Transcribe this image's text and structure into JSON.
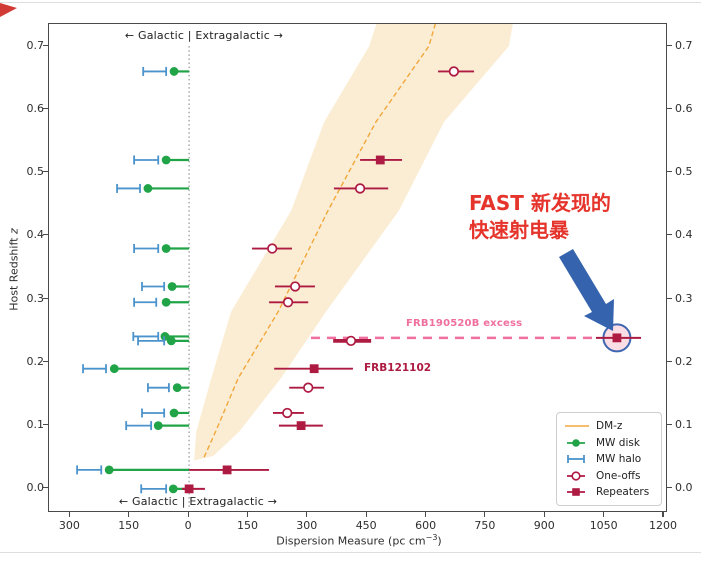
{
  "axes": {
    "ylabel_pre": "Host Redshift ",
    "ylabel_z": "z",
    "xlabel_pre": "Dispersion Measure (pc cm",
    "xlabel_sup": "−3",
    "xlabel_post": ")"
  },
  "annotations": {
    "galactic_top": "← Galactic | Extragalactic →",
    "galactic_bottom": "← Galactic | Extragalactic →",
    "excess_label": "FRB190520B excess",
    "frb121102_label": "FRB121102",
    "fast_line1": "FAST 新发现的",
    "fast_line2": "快速射电暴"
  },
  "legend": {
    "items": [
      {
        "marker": "dmz",
        "label": "DM-z"
      },
      {
        "marker": "disk",
        "label": "MW disk"
      },
      {
        "marker": "halo",
        "label": "MW halo"
      },
      {
        "marker": "oneoff",
        "label": "One-offs"
      },
      {
        "marker": "repeater",
        "label": "Repeaters"
      }
    ]
  },
  "colors": {
    "disk_green": "#21a447",
    "halo_blue": "#4b93cc",
    "frb_crimson": "#ad1a42",
    "excess_pink": "#ef6f9e",
    "dmz_orange": "#f2a73b",
    "band_fill": "#f9e2b8",
    "arrow_blue": "#3563ae",
    "fast_red": "#e5342b",
    "highlight_fill": "#f9d7e0",
    "highlight_stroke": "#3f66b0",
    "zero_line": "#8a8a8a"
  },
  "chart_data": {
    "type": "scatter",
    "title": "",
    "xlabel": "Dispersion Measure (pc cm^-3)",
    "ylabel": "Host Redshift z",
    "xlim": [
      -354,
      1205
    ],
    "ylim": [
      -0.035,
      0.735
    ],
    "grid": false,
    "legend_position": "lower right",
    "xticks": {
      "values": [
        -300,
        -150,
        0,
        150,
        300,
        450,
        600,
        750,
        900,
        1050,
        1200
      ],
      "labels": [
        "300",
        "150",
        "0",
        "150",
        "300",
        "450",
        "600",
        "750",
        "900",
        "1050",
        "1200"
      ]
    },
    "yticks": {
      "values": [
        0.0,
        0.1,
        0.2,
        0.3,
        0.4,
        0.5,
        0.6,
        0.7
      ],
      "labels": [
        "0.0",
        "0.1",
        "0.2",
        "0.3",
        "0.4",
        "0.5",
        "0.6",
        "0.7"
      ],
      "both_sides": true
    },
    "zero_dm_line": 0,
    "band": {
      "name": "DM-z",
      "center": [
        [
          0.05,
          38
        ],
        [
          0.092,
          68
        ],
        [
          0.175,
          124
        ],
        [
          0.28,
          225
        ],
        [
          0.44,
          351
        ],
        [
          0.58,
          472
        ],
        [
          0.7,
          606
        ],
        [
          0.735,
          622
        ]
      ],
      "left_edge": [
        [
          0.045,
          13
        ],
        [
          0.09,
          18
        ],
        [
          0.175,
          56
        ],
        [
          0.28,
          106
        ],
        [
          0.44,
          258
        ],
        [
          0.58,
          341
        ],
        [
          0.7,
          455
        ],
        [
          0.735,
          473
        ]
      ],
      "right_edge": [
        [
          0.052,
          61
        ],
        [
          0.09,
          126
        ],
        [
          0.175,
          232
        ],
        [
          0.28,
          346
        ],
        [
          0.44,
          530
        ],
        [
          0.58,
          644
        ],
        [
          0.7,
          808
        ],
        [
          0.735,
          818
        ]
      ]
    },
    "rows": [
      {
        "z": 0.66,
        "mw_disk_dm": -38,
        "mw_halo": [
          -116,
          -58
        ],
        "frb": {
          "type": "oneoff",
          "dm": 669,
          "lo": 629,
          "hi": 720
        }
      },
      {
        "z": 0.52,
        "mw_disk_dm": -58,
        "mw_halo": [
          -139,
          -78
        ],
        "frb": {
          "type": "repeater",
          "dm": 483,
          "lo": 432,
          "hi": 538
        }
      },
      {
        "z": 0.475,
        "mw_disk_dm": -104,
        "mw_halo": [
          -182,
          -124
        ],
        "frb": {
          "type": "oneoff",
          "dm": 432,
          "lo": 366,
          "hi": 503
        }
      },
      {
        "z": 0.38,
        "mw_disk_dm": -58,
        "mw_halo": [
          -139,
          -78
        ],
        "frb": {
          "type": "oneoff",
          "dm": 210,
          "lo": 159,
          "hi": 260
        }
      },
      {
        "z": 0.32,
        "mw_disk_dm": -43,
        "mw_halo": [
          -119,
          -63
        ],
        "frb": {
          "type": "oneoff",
          "dm": 268,
          "lo": 217,
          "hi": 318
        }
      },
      {
        "z": 0.295,
        "mw_disk_dm": -58,
        "mw_halo": [
          -139,
          -83
        ],
        "frb": {
          "type": "oneoff",
          "dm": 250,
          "lo": 202,
          "hi": 301
        }
      },
      {
        "z": 0.241,
        "mw_disk_dm": -61,
        "mw_halo": [
          -141,
          -78
        ],
        "frb": null
      },
      {
        "z": 0.234,
        "mw_disk_dm": -45,
        "mw_halo": [
          -129,
          -63
        ],
        "frb": {
          "type": "oneoff",
          "dm": 409,
          "lo": 364,
          "hi": 460,
          "thick": true
        },
        "frb2": {
          "type": "repeater",
          "dm": 1081,
          "lo": 1028,
          "hi": 1142,
          "highlight": true,
          "name": "FRB190520B"
        },
        "excess_dash": {
          "from": 308,
          "to": 1020
        }
      },
      {
        "z": 0.19,
        "mw_disk_dm": -189,
        "mw_halo": [
          -268,
          -210
        ],
        "frb": {
          "type": "repeater",
          "dm": 316,
          "lo": 215,
          "hi": 414,
          "name": "FRB121102"
        }
      },
      {
        "z": 0.16,
        "mw_disk_dm": -30,
        "mw_halo": [
          -104,
          -51
        ],
        "frb": {
          "type": "oneoff",
          "dm": 301,
          "lo": 253,
          "hi": 341
        }
      },
      {
        "z": 0.12,
        "mw_disk_dm": -38,
        "mw_halo": [
          -119,
          -63
        ],
        "frb": {
          "type": "oneoff",
          "dm": 248,
          "lo": 212,
          "hi": 290
        }
      },
      {
        "z": 0.1,
        "mw_disk_dm": -78,
        "mw_halo": [
          -159,
          -96
        ],
        "frb": {
          "type": "repeater",
          "dm": 283,
          "lo": 227,
          "hi": 338
        }
      },
      {
        "z": 0.03,
        "mw_disk_dm": -202,
        "mw_halo": [
          -283,
          -222
        ],
        "frb": {
          "type": "repeater",
          "dm": 96,
          "lo": 0,
          "hi": 202
        }
      },
      {
        "z": 0.0,
        "mw_disk_dm": -40,
        "mw_halo": [
          -121,
          -58
        ],
        "frb": {
          "type": "repeater",
          "dm": 0,
          "lo": -18,
          "hi": 40
        }
      }
    ]
  }
}
